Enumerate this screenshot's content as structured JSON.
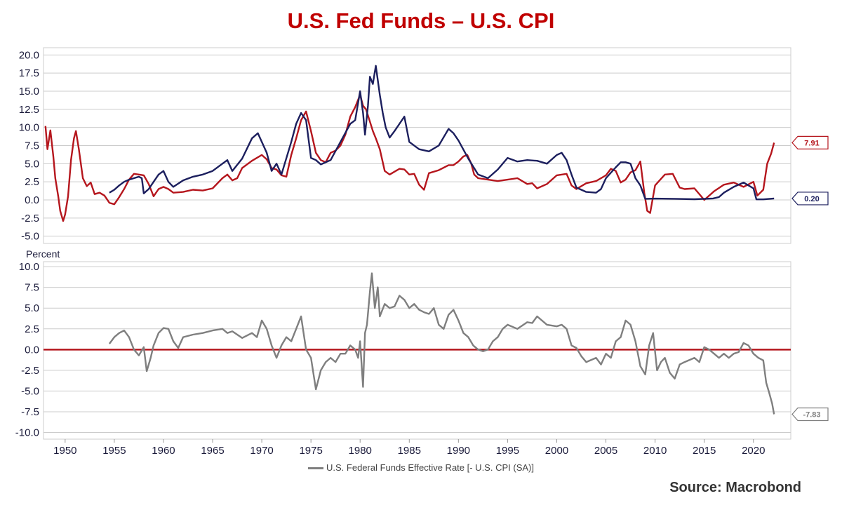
{
  "title": "U.S. Fed Funds – U.S. CPI",
  "source": "Source: Macrobond",
  "colors": {
    "fed_funds": "#1c1f5e",
    "cpi": "#b5161d",
    "spread": "#7f7f7f",
    "zero_line": "#b5161d",
    "title": "#c00000"
  },
  "chart_data": [
    {
      "type": "line",
      "ylim": [
        -6,
        21
      ],
      "xlim": [
        1947.8,
        2023.8
      ],
      "yticks": [
        "20.0",
        "17.5",
        "15.0",
        "12.5",
        "10.0",
        "7.5",
        "5.0",
        "2.5",
        "0.0",
        "-2.5",
        "-5.0"
      ],
      "series": [
        {
          "key": "cpi",
          "x": [
            1948.0,
            1948.2,
            1948.5,
            1948.8,
            1949.0,
            1949.3,
            1949.5,
            1949.8,
            1950.0,
            1950.3,
            1950.6,
            1950.9,
            1951.1,
            1951.4,
            1951.8,
            1952.2,
            1952.6,
            1953.0,
            1953.5,
            1954.0,
            1954.5,
            1955.0,
            1955.5,
            1956.0,
            1956.5,
            1957.0,
            1957.5,
            1958.0,
            1958.5,
            1959.0,
            1959.5,
            1960.0,
            1960.5,
            1961.0,
            1962.0,
            1963.0,
            1964.0,
            1965.0,
            1966.0,
            1966.5,
            1967.0,
            1967.5,
            1968.0,
            1969.0,
            1970.0,
            1970.5,
            1971.0,
            1971.5,
            1972.0,
            1972.5,
            1973.0,
            1973.5,
            1974.0,
            1974.5,
            1975.0,
            1975.5,
            1976.0,
            1976.5,
            1977.0,
            1977.5,
            1978.0,
            1978.5,
            1979.0,
            1979.5,
            1980.0,
            1980.3,
            1980.6,
            1981.0,
            1981.3,
            1981.6,
            1982.0,
            1982.5,
            1983.0,
            1983.5,
            1984.0,
            1984.5,
            1985.0,
            1985.5,
            1986.0,
            1986.5,
            1987.0,
            1988.0,
            1989.0,
            1989.5,
            1990.0,
            1990.5,
            1990.9,
            1991.3,
            1991.6,
            1992.0,
            1993.0,
            1994.0,
            1995.0,
            1996.0,
            1997.0,
            1997.5,
            1998.0,
            1999.0,
            2000.0,
            2001.0,
            2001.5,
            2002.0,
            2003.0,
            2004.0,
            2005.0,
            2005.5,
            2006.0,
            2006.5,
            2007.0,
            2007.5,
            2008.0,
            2008.5,
            2008.9,
            2009.2,
            2009.5,
            2010.0,
            2011.0,
            2011.8,
            2012.5,
            2013.0,
            2014.0,
            2015.0,
            2016.0,
            2017.0,
            2018.0,
            2019.0,
            2020.0,
            2020.4,
            2021.0,
            2021.4,
            2021.8,
            2022.1
          ],
          "values": [
            10.2,
            7.0,
            9.6,
            6.0,
            3.0,
            0.5,
            -1.5,
            -2.9,
            -2.0,
            0.5,
            5.5,
            8.5,
            9.5,
            7.0,
            3.0,
            1.9,
            2.4,
            0.8,
            1.0,
            0.6,
            -0.4,
            -0.6,
            0.4,
            1.5,
            2.8,
            3.6,
            3.5,
            3.4,
            2.2,
            0.5,
            1.5,
            1.8,
            1.5,
            1.0,
            1.1,
            1.4,
            1.3,
            1.6,
            3.0,
            3.5,
            2.7,
            3.0,
            4.4,
            5.4,
            6.2,
            5.6,
            4.4,
            4.2,
            3.4,
            3.2,
            6.2,
            8.5,
            11.0,
            12.2,
            9.5,
            6.5,
            5.5,
            5.2,
            6.5,
            6.8,
            7.5,
            9.0,
            11.5,
            12.8,
            14.5,
            13.0,
            12.5,
            10.8,
            9.5,
            8.5,
            7.0,
            4.0,
            3.5,
            3.9,
            4.3,
            4.2,
            3.5,
            3.6,
            2.1,
            1.4,
            3.7,
            4.1,
            4.8,
            4.8,
            5.3,
            6.0,
            6.2,
            5.0,
            3.5,
            3.0,
            2.8,
            2.6,
            2.8,
            3.0,
            2.2,
            2.3,
            1.6,
            2.2,
            3.4,
            3.6,
            2.0,
            1.5,
            2.3,
            2.6,
            3.4,
            4.3,
            4.0,
            2.4,
            2.8,
            3.8,
            4.1,
            5.3,
            1.0,
            -1.5,
            -1.8,
            2.0,
            3.5,
            3.6,
            1.7,
            1.5,
            1.6,
            0.0,
            1.2,
            2.1,
            2.4,
            1.8,
            2.5,
            0.6,
            1.4,
            5.0,
            6.4,
            7.9
          ]
        },
        {
          "key": "fed_funds",
          "x": [
            1954.5,
            1955.0,
            1955.5,
            1956.0,
            1956.5,
            1957.0,
            1957.5,
            1957.8,
            1958.0,
            1958.5,
            1959.0,
            1959.5,
            1960.0,
            1960.5,
            1961.0,
            1962.0,
            1963.0,
            1964.0,
            1965.0,
            1966.0,
            1966.5,
            1967.0,
            1968.0,
            1969.0,
            1969.6,
            1970.0,
            1970.5,
            1971.0,
            1971.5,
            1972.0,
            1973.0,
            1973.5,
            1974.0,
            1974.5,
            1975.0,
            1975.5,
            1976.0,
            1977.0,
            1978.0,
            1979.0,
            1979.5,
            1980.0,
            1980.3,
            1980.5,
            1980.8,
            1981.0,
            1981.3,
            1981.6,
            1982.0,
            1982.3,
            1982.6,
            1983.0,
            1983.5,
            1984.0,
            1984.5,
            1985.0,
            1986.0,
            1987.0,
            1988.0,
            1989.0,
            1989.5,
            1990.0,
            1991.0,
            1992.0,
            1993.0,
            1994.0,
            1995.0,
            1996.0,
            1997.0,
            1998.0,
            1999.0,
            2000.0,
            2000.5,
            2001.0,
            2001.5,
            2002.0,
            2003.0,
            2004.0,
            2004.5,
            2005.0,
            2006.0,
            2006.5,
            2007.0,
            2007.5,
            2008.0,
            2008.5,
            2009.0,
            2010.0,
            2012.0,
            2014.0,
            2015.9,
            2016.5,
            2017.0,
            2018.0,
            2019.0,
            2019.5,
            2020.0,
            2020.3,
            2021.0,
            2022.1
          ],
          "values": [
            1.0,
            1.4,
            2.0,
            2.5,
            2.8,
            3.0,
            3.2,
            3.0,
            0.9,
            1.5,
            2.5,
            3.5,
            4.0,
            2.5,
            1.8,
            2.7,
            3.2,
            3.5,
            4.0,
            5.0,
            5.5,
            4.0,
            5.7,
            8.5,
            9.2,
            8.0,
            6.5,
            4.0,
            5.0,
            3.5,
            8.0,
            10.5,
            12.0,
            11.0,
            5.8,
            5.5,
            4.9,
            5.5,
            8.0,
            10.5,
            11.0,
            15.0,
            12.0,
            9.0,
            13.0,
            17.0,
            16.0,
            18.5,
            14.5,
            12.0,
            10.0,
            8.6,
            9.5,
            10.5,
            11.5,
            8.0,
            7.0,
            6.7,
            7.5,
            9.8,
            9.2,
            8.2,
            5.7,
            3.5,
            3.0,
            4.2,
            5.8,
            5.3,
            5.5,
            5.4,
            5.0,
            6.2,
            6.5,
            5.5,
            3.5,
            1.7,
            1.1,
            1.0,
            1.5,
            3.0,
            4.5,
            5.2,
            5.2,
            5.0,
            3.0,
            2.0,
            0.15,
            0.18,
            0.15,
            0.1,
            0.2,
            0.4,
            1.0,
            1.8,
            2.4,
            2.0,
            1.6,
            0.08,
            0.08,
            0.2
          ]
        }
      ],
      "end_labels": {
        "cpi": "7.91",
        "fed_funds": "0.20"
      }
    },
    {
      "type": "line",
      "ylabel": "Percent",
      "ylim": [
        -10.8,
        10.6
      ],
      "xlim": [
        1947.8,
        2023.8
      ],
      "yticks": [
        "10.0",
        "7.5",
        "5.0",
        "2.5",
        "0.0",
        "-2.5",
        "-5.0",
        "-7.5",
        "-10.0"
      ],
      "xticks": [
        "1950",
        "1955",
        "1960",
        "1965",
        "1970",
        "1975",
        "1980",
        "1985",
        "1990",
        "1995",
        "2000",
        "2005",
        "2010",
        "2015",
        "2020"
      ],
      "series": [
        {
          "key": "spread",
          "name": "U.S. Federal Funds Effective Rate [- U.S. CPI (SA)]",
          "x": [
            1954.5,
            1955.0,
            1955.5,
            1956.0,
            1956.5,
            1957.0,
            1957.5,
            1958.0,
            1958.3,
            1958.7,
            1959.0,
            1959.5,
            1960.0,
            1960.5,
            1961.0,
            1961.5,
            1962.0,
            1963.0,
            1964.0,
            1965.0,
            1966.0,
            1966.5,
            1967.0,
            1967.5,
            1968.0,
            1969.0,
            1969.5,
            1970.0,
            1970.5,
            1971.0,
            1971.5,
            1972.0,
            1972.5,
            1973.0,
            1973.5,
            1974.0,
            1974.5,
            1975.0,
            1975.5,
            1976.0,
            1976.5,
            1977.0,
            1977.5,
            1978.0,
            1978.5,
            1979.0,
            1979.5,
            1979.8,
            1980.0,
            1980.3,
            1980.5,
            1980.7,
            1981.0,
            1981.2,
            1981.5,
            1981.8,
            1982.0,
            1982.5,
            1983.0,
            1983.5,
            1984.0,
            1984.5,
            1985.0,
            1985.5,
            1986.0,
            1986.5,
            1987.0,
            1987.5,
            1988.0,
            1988.5,
            1989.0,
            1989.5,
            1990.0,
            1990.5,
            1991.0,
            1991.5,
            1992.0,
            1992.5,
            1993.0,
            1993.5,
            1994.0,
            1994.5,
            1995.0,
            1996.0,
            1997.0,
            1997.5,
            1998.0,
            1999.0,
            2000.0,
            2000.5,
            2001.0,
            2001.5,
            2002.0,
            2002.5,
            2003.0,
            2004.0,
            2004.5,
            2005.0,
            2005.5,
            2006.0,
            2006.5,
            2007.0,
            2007.5,
            2008.0,
            2008.5,
            2009.0,
            2009.4,
            2009.8,
            2010.2,
            2010.6,
            2011.0,
            2011.5,
            2012.0,
            2012.5,
            2013.0,
            2014.0,
            2014.5,
            2015.0,
            2015.5,
            2016.0,
            2016.5,
            2017.0,
            2017.5,
            2018.0,
            2018.5,
            2019.0,
            2019.5,
            2020.0,
            2020.5,
            2021.0,
            2021.3,
            2021.6,
            2021.9,
            2022.1
          ],
          "values": [
            0.7,
            1.5,
            2.0,
            2.3,
            1.5,
            0.0,
            -0.7,
            0.3,
            -2.6,
            -1.0,
            0.5,
            2.0,
            2.6,
            2.5,
            1.0,
            0.2,
            1.5,
            1.8,
            2.0,
            2.3,
            2.5,
            2.0,
            2.2,
            1.8,
            1.4,
            2.0,
            1.5,
            3.5,
            2.5,
            0.5,
            -1.0,
            0.5,
            1.5,
            1.0,
            2.5,
            4.0,
            0.0,
            -1.0,
            -4.8,
            -2.5,
            -1.5,
            -1.0,
            -1.5,
            -0.5,
            -0.5,
            0.5,
            0.0,
            -1.0,
            1.0,
            -4.5,
            2.0,
            3.0,
            7.0,
            9.2,
            5.0,
            7.5,
            4.0,
            5.5,
            5.0,
            5.2,
            6.5,
            6.0,
            5.0,
            5.5,
            4.8,
            4.5,
            4.3,
            5.0,
            3.0,
            2.5,
            4.2,
            4.8,
            3.5,
            2.0,
            1.5,
            0.5,
            0.0,
            -0.2,
            0.0,
            1.0,
            1.5,
            2.5,
            3.0,
            2.5,
            3.3,
            3.2,
            4.0,
            3.0,
            2.8,
            3.0,
            2.5,
            0.5,
            0.2,
            -0.8,
            -1.5,
            -1.0,
            -1.8,
            -0.5,
            -1.0,
            1.0,
            1.5,
            3.5,
            3.0,
            1.0,
            -2.0,
            -3.0,
            0.5,
            2.0,
            -2.5,
            -1.5,
            -1.0,
            -2.8,
            -3.5,
            -1.8,
            -1.5,
            -1.0,
            -1.5,
            0.3,
            0.0,
            -0.5,
            -1.0,
            -0.5,
            -1.0,
            -0.5,
            -0.3,
            0.8,
            0.5,
            -0.5,
            -1.0,
            -1.3,
            -4.0,
            -5.2,
            -6.5,
            -7.8
          ]
        }
      ],
      "zero_line": true,
      "end_labels": {
        "spread": "-7.83"
      },
      "legend": "bottom-center"
    }
  ]
}
